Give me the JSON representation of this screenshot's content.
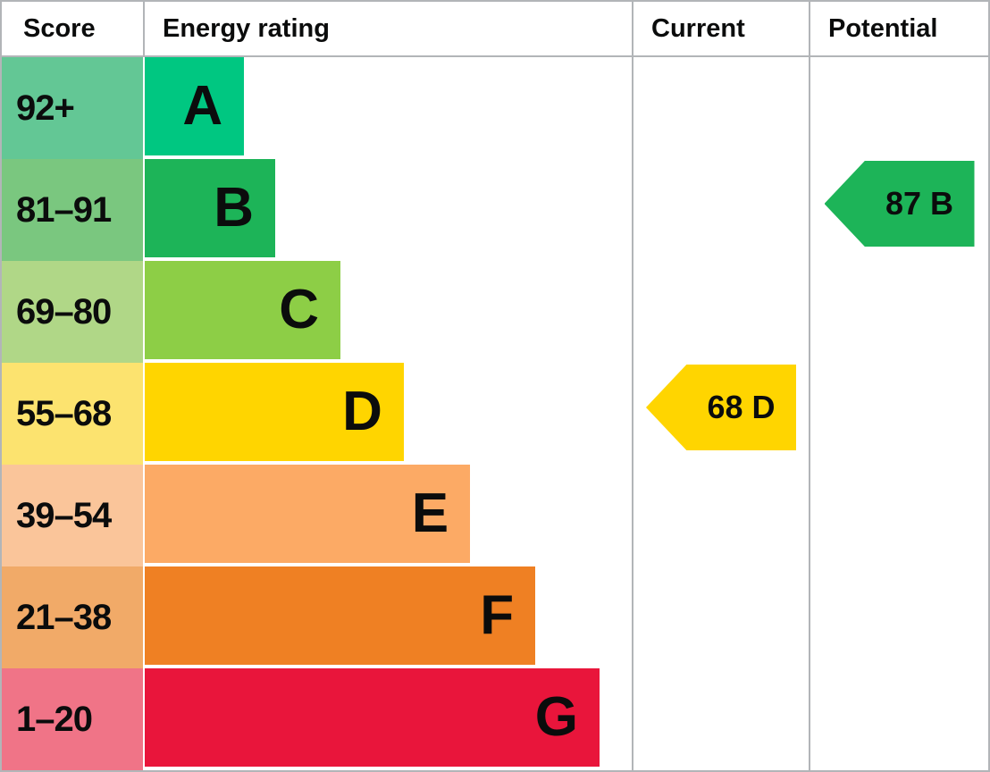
{
  "header": {
    "score": "Score",
    "energy_rating": "Energy rating",
    "current": "Current",
    "potential": "Potential"
  },
  "chart_data": {
    "type": "bar",
    "title": "Energy rating",
    "columns": [
      "Score",
      "Energy rating",
      "Current",
      "Potential"
    ],
    "bands": [
      {
        "letter": "A",
        "score_range": "92+",
        "bar_color": "#00c781",
        "score_bg": "#63c795",
        "bar_width": "20.4%"
      },
      {
        "letter": "B",
        "score_range": "81–91",
        "bar_color": "#1db458",
        "score_bg": "#7ac77f",
        "bar_width": "26.8%"
      },
      {
        "letter": "C",
        "score_range": "69–80",
        "bar_color": "#8dce46",
        "score_bg": "#b0d787",
        "bar_width": "40.2%"
      },
      {
        "letter": "D",
        "score_range": "55–68",
        "bar_color": "#ffd500",
        "score_bg": "#fce36f",
        "bar_width": "53.2%"
      },
      {
        "letter": "E",
        "score_range": "39–54",
        "bar_color": "#fcaa65",
        "score_bg": "#fac59a",
        "bar_width": "66.8%"
      },
      {
        "letter": "F",
        "score_range": "21–38",
        "bar_color": "#ef8023",
        "score_bg": "#f1aa68",
        "bar_width": "80.2%"
      },
      {
        "letter": "G",
        "score_range": "1–20",
        "bar_color": "#e9153b",
        "score_bg": "#f07487",
        "bar_width": "93.4%"
      }
    ],
    "current": {
      "value": 68,
      "band": "D",
      "label": "68 D",
      "color": "#ffd500"
    },
    "potential": {
      "value": 87,
      "band": "B",
      "label": "87 B",
      "color": "#1db458"
    }
  },
  "colors": {
    "border": "#b2b5b8",
    "text": "#0b0c0c",
    "background": "#ffffff"
  }
}
